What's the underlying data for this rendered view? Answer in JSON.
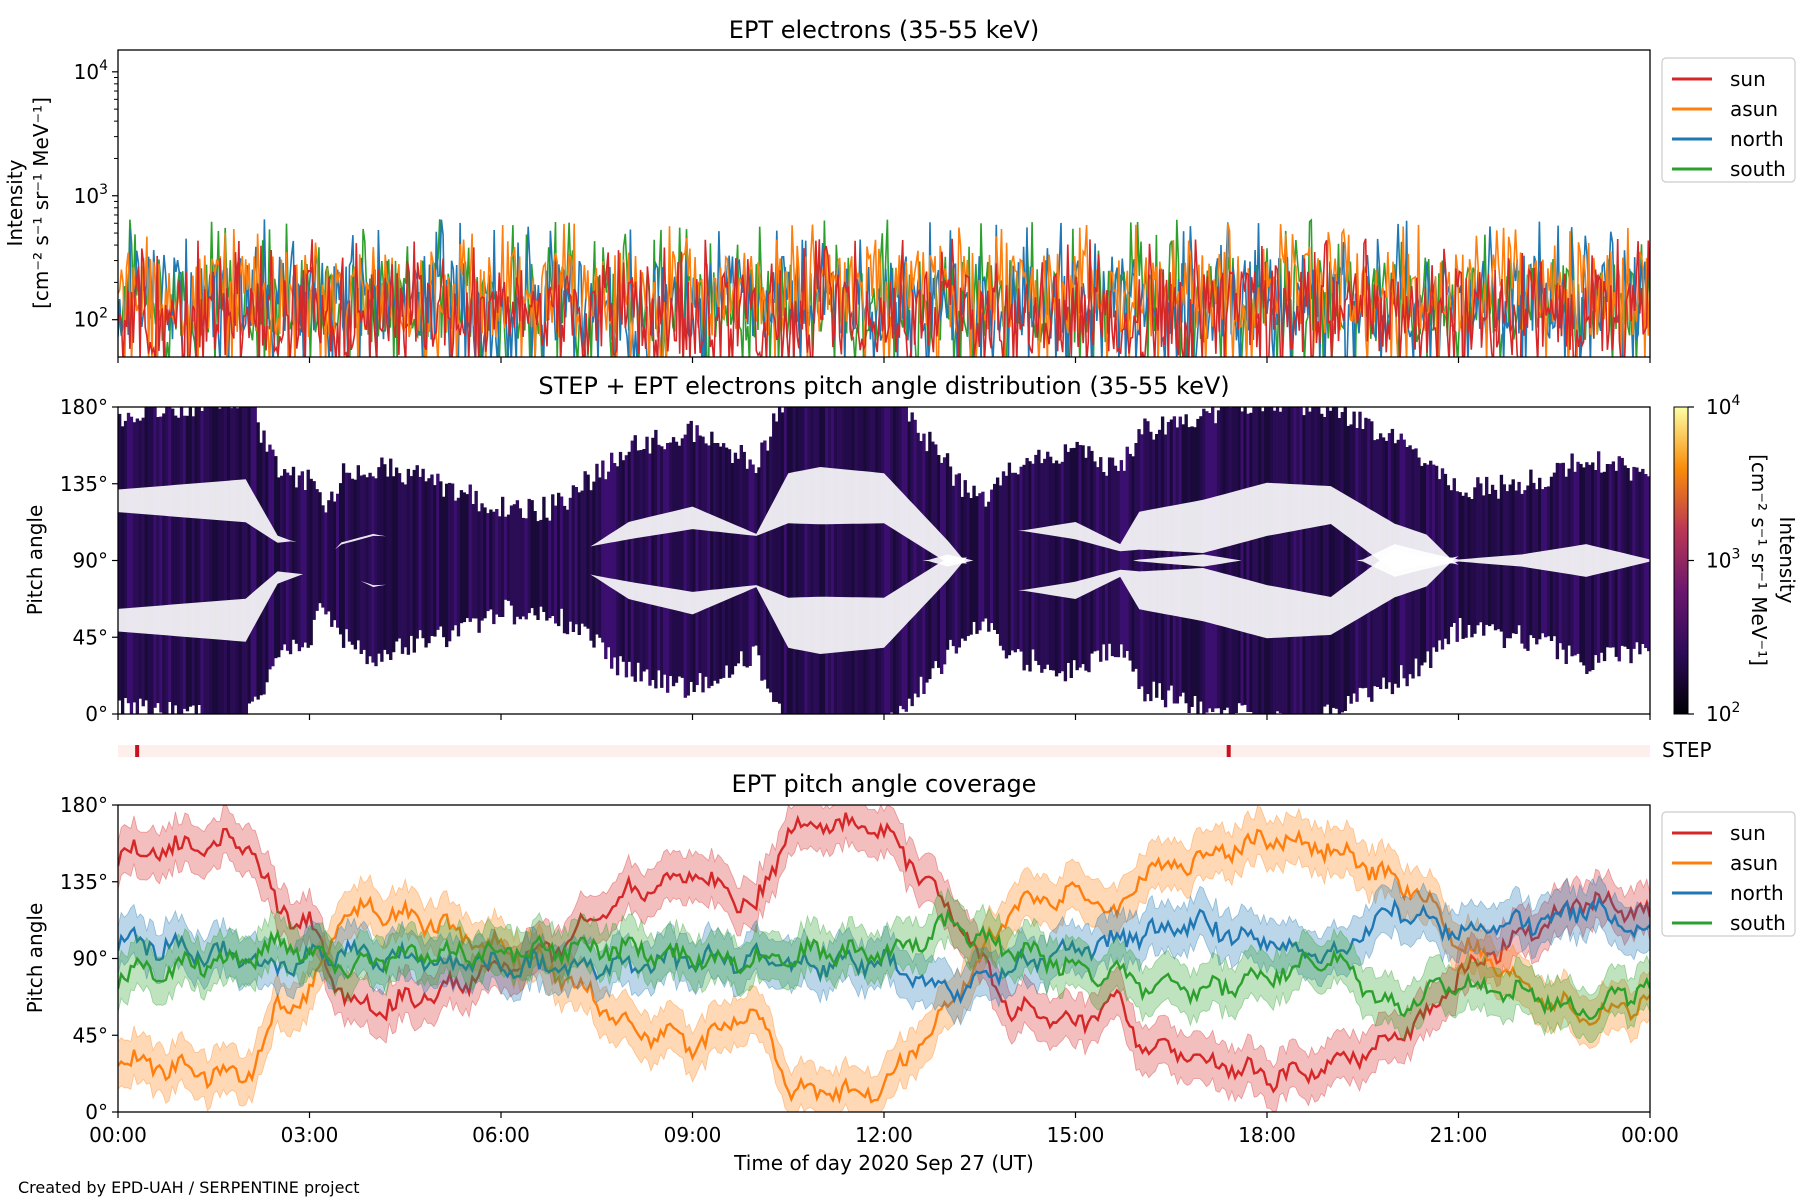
{
  "figure": {
    "xlabel": "Time of day 2020 Sep 27 (UT)",
    "x_ticks": [
      "00:00",
      "03:00",
      "06:00",
      "09:00",
      "12:00",
      "15:00",
      "18:00",
      "21:00",
      "00:00"
    ],
    "credit": "Created by EPD-UAH / SERPENTINE project"
  },
  "colors": {
    "sun": "#d62728",
    "asun": "#ff7f0e",
    "north": "#1f77b4",
    "south": "#2ca02c"
  },
  "chart_data": [
    {
      "type": "line",
      "title": "EPT electrons (35-55 keV)",
      "ylabel": "Intensity",
      "yunit": "[cm⁻² s⁻¹ sr⁻¹ MeV⁻¹]",
      "yscale": "log",
      "ylim": [
        50,
        15000
      ],
      "y_ticks": [
        {
          "v": 100,
          "exp": "2"
        },
        {
          "v": 1000,
          "exp": "3"
        },
        {
          "v": 10000,
          "exp": "4"
        }
      ],
      "x": {
        "start_hour": 0,
        "end_hour": 24
      },
      "legend": [
        "sun",
        "asun",
        "north",
        "south"
      ],
      "legend_position": "outside-right",
      "series": [
        {
          "name": "sun",
          "baseline": 115,
          "range": [
            50,
            450
          ]
        },
        {
          "name": "asun",
          "baseline": 160,
          "range": [
            50,
            600
          ]
        },
        {
          "name": "north",
          "baseline": 150,
          "range": [
            50,
            650
          ]
        },
        {
          "name": "south",
          "baseline": 145,
          "range": [
            50,
            650
          ]
        }
      ]
    },
    {
      "type": "heatmap",
      "title": "STEP + EPT electrons pitch angle distribution (35-55 keV)",
      "ylabel": "Pitch angle",
      "ylim": [
        0,
        180
      ],
      "y_ticks": [
        "0°",
        "45°",
        "90°",
        "135°",
        "180°"
      ],
      "colorbar": {
        "label": "Intensity",
        "unit": "[cm⁻² s⁻¹ sr⁻¹ MeV⁻¹]",
        "scale": "log",
        "range": [
          100,
          10000
        ],
        "ticks": [
          {
            "v": 100,
            "exp": "2"
          },
          {
            "v": 1000,
            "exp": "3"
          },
          {
            "v": 10000,
            "exp": "4"
          }
        ]
      }
    },
    {
      "type": "bar",
      "label": "STEP",
      "markers_hours": [
        0.3,
        17.4
      ],
      "color": "#c8101e",
      "background": "#fdf0ec"
    },
    {
      "type": "line",
      "title": "EPT pitch angle coverage",
      "ylabel": "Pitch angle",
      "ylim": [
        0,
        180
      ],
      "y_ticks": [
        "0°",
        "45°",
        "90°",
        "135°",
        "180°"
      ],
      "legend": [
        "sun",
        "asun",
        "north",
        "south"
      ],
      "legend_position": "outside-right",
      "series": [
        {
          "name": "sun",
          "hours": [
            0,
            1,
            2,
            2.5,
            3,
            3.5,
            4,
            5,
            6,
            6.5,
            7,
            8,
            9,
            10,
            10.5,
            11,
            12,
            13,
            14,
            15,
            15.7,
            16,
            17,
            18,
            19,
            20,
            20.5,
            21,
            22,
            23,
            24
          ],
          "values": [
            150,
            155,
            160,
            120,
            110,
            70,
            60,
            70,
            85,
            90,
            100,
            130,
            140,
            120,
            165,
            170,
            165,
            120,
            60,
            50,
            65,
            40,
            30,
            20,
            25,
            45,
            55,
            80,
            105,
            125,
            115
          ]
        },
        {
          "name": "asun",
          "hours": [
            0,
            1,
            2,
            2.5,
            3,
            3.5,
            4,
            5,
            6,
            6.5,
            7,
            8,
            9,
            10,
            10.5,
            11,
            12,
            13,
            14,
            15,
            15.7,
            16,
            17,
            18,
            19,
            20,
            20.5,
            21,
            22,
            23,
            24
          ],
          "values": [
            30,
            25,
            20,
            60,
            70,
            115,
            120,
            110,
            95,
            90,
            80,
            50,
            40,
            60,
            15,
            10,
            15,
            60,
            120,
            130,
            115,
            140,
            150,
            160,
            155,
            135,
            125,
            100,
            75,
            55,
            65
          ]
        },
        {
          "name": "north",
          "hours": [
            0,
            1,
            2,
            2.5,
            3,
            3.5,
            4,
            5,
            6,
            6.5,
            7,
            8,
            9,
            10,
            10.5,
            11,
            12,
            13,
            14,
            15,
            15.7,
            16,
            17,
            18,
            19,
            20,
            20.5,
            21,
            22,
            23,
            24
          ],
          "values": [
            100,
            95,
            90,
            85,
            90,
            95,
            90,
            88,
            85,
            86,
            84,
            85,
            90,
            90,
            88,
            86,
            88,
            70,
            85,
            95,
            100,
            105,
            110,
            100,
            90,
            120,
            112,
            105,
            110,
            120,
            105
          ]
        },
        {
          "name": "south",
          "hours": [
            0,
            1,
            2,
            2.5,
            3,
            3.5,
            4,
            5,
            6,
            6.5,
            7,
            8,
            9,
            10,
            10.5,
            11,
            12,
            13,
            14,
            15,
            15.7,
            16,
            17,
            18,
            19,
            20,
            20.5,
            21,
            22,
            23,
            24
          ],
          "values": [
            80,
            85,
            90,
            100,
            95,
            85,
            90,
            92,
            95,
            94,
            96,
            95,
            90,
            90,
            92,
            94,
            92,
            110,
            95,
            85,
            80,
            75,
            70,
            80,
            90,
            60,
            68,
            75,
            70,
            60,
            75
          ]
        }
      ]
    }
  ]
}
